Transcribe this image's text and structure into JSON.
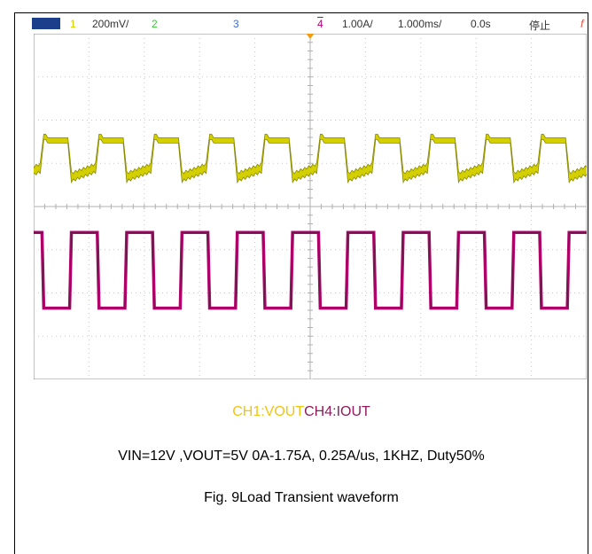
{
  "header": {
    "ch1_num": "1",
    "ch1_scale": "200mV/",
    "ch2_num": "2",
    "ch3_num": "3",
    "ch4_num": "4",
    "ch4_scale": "1.00A/",
    "timebase": "1.000ms/",
    "delay": "0.0s",
    "status": "停止",
    "trigger_glyph": "f"
  },
  "legend": {
    "ch1": "CH1:VOUT",
    "ch4": "CH4:IOUT"
  },
  "conditions": "VIN=12V ,VOUT=5V 0A-1.75A, 0.25A/us, 1KHZ, Duty50%",
  "figure_title": "Fig. 9Load Transient waveform",
  "colors": {
    "ch1": "#d4d000",
    "ch4": "#b5006e",
    "grid": "#c8c8c8",
    "header_tag": "#1b3f8b",
    "ch2": "#33cc33",
    "ch3": "#3a6fd8",
    "trigger": "#f39c12"
  },
  "chart_data": {
    "type": "line",
    "title": "",
    "xlabel": "",
    "ylabel": "",
    "x_divisions": 10,
    "y_divisions": 8,
    "time_per_div_ms": 1.0,
    "period_ms": 1.0,
    "duty_percent": 50,
    "series": [
      {
        "name": "CH1:VOUT",
        "channel": 1,
        "scale": "200mV/",
        "high_level_div": 5.55,
        "low_level_div": 4.85,
        "droop_div": 0.35
      },
      {
        "name": "CH4:IOUT",
        "channel": 4,
        "scale": "1.00A/",
        "high_level_A": 1.75,
        "low_level_A": 0.0,
        "high_level_div": 3.4,
        "low_level_div": 1.65
      }
    ]
  }
}
